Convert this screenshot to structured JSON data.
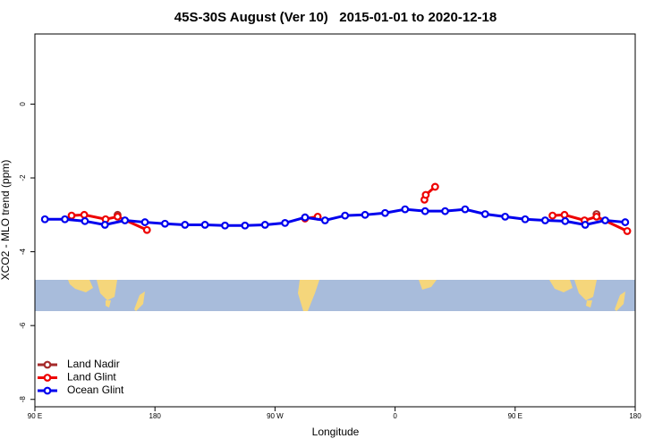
{
  "chart_data": {
    "type": "line",
    "title": "45S-30S August (Ver 10)   2015-01-01 to 2020-12-18",
    "x_label": "Longitude",
    "y_label": "XCO2 - MLO trend (ppm)",
    "xlim": [
      90,
      540
    ],
    "ylim": [
      -8.2,
      1.9
    ],
    "xticks": [
      {
        "value": 90,
        "label": "90 E"
      },
      180,
      {
        "value": 270,
        "label": "90 W"
      },
      {
        "value": 360,
        "label": "0"
      },
      {
        "value": 450,
        "label": "90 E"
      },
      {
        "value": 540,
        "label": "180"
      }
    ],
    "yticks": [
      0,
      -2,
      -4,
      -6,
      -8
    ],
    "legend": "bottom-left",
    "series": [
      {
        "name": "Land Nadir",
        "color": "#a52a2a",
        "x": [
          152,
          200,
          292.5,
          400,
          511
        ],
        "values": [
          -3.0,
          null,
          -3.07,
          null,
          -2.98
        ]
      },
      {
        "name": "Land Glint",
        "color": "#ee0000",
        "x": [
          117.5,
          127,
          143,
          152,
          174,
          230,
          292.5,
          302,
          340,
          382,
          383,
          390,
          430,
          478,
          487,
          502,
          511,
          534
        ],
        "values": [
          -3.02,
          -3.0,
          -3.12,
          -3.05,
          -3.41,
          null,
          -3.1,
          -3.05,
          null,
          -2.59,
          -2.46,
          -2.24,
          null,
          -3.02,
          -3.0,
          -3.15,
          -3.05,
          -3.44
        ]
      },
      {
        "name": "Ocean Glint",
        "color": "#0000ee",
        "x": [
          97.5,
          112.5,
          127.5,
          142.5,
          157.5,
          172.5,
          187.5,
          202.5,
          217.5,
          232.5,
          247.5,
          262.5,
          277.5,
          292.5,
          307.5,
          322.5,
          337.5,
          352.5,
          367.5,
          382.5,
          397.5,
          412.5,
          427.5,
          442.5,
          457.5,
          472.5,
          487.5,
          502.5,
          517.5,
          532.5
        ],
        "values": [
          -3.12,
          -3.12,
          -3.17,
          -3.27,
          -3.15,
          -3.2,
          -3.24,
          -3.27,
          -3.27,
          -3.29,
          -3.29,
          -3.27,
          -3.22,
          -3.07,
          -3.15,
          -3.02,
          -3.0,
          -2.95,
          -2.85,
          -2.9,
          -2.9,
          -2.85,
          -2.98,
          -3.05,
          -3.12,
          -3.15,
          -3.17,
          -3.27,
          -3.15,
          -3.2
        ]
      }
    ]
  }
}
